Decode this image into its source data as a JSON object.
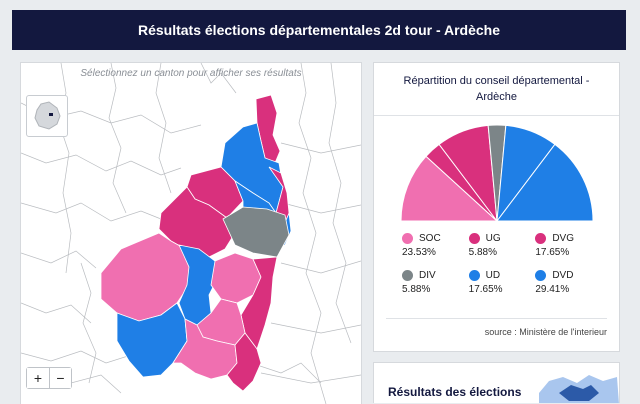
{
  "header": {
    "title": "Résultats élections départementales 2d tour - Ardèche"
  },
  "map": {
    "hint": "Sélectionnez un canton pour afficher ses résultats",
    "zoom_in": "+",
    "zoom_out": "−",
    "inset_icon": "france-outline-icon"
  },
  "colors": {
    "SOC": "#f06fb0",
    "UG": "#d9307d",
    "DVG": "#d9307d",
    "DIV": "#7c8588",
    "UD": "#1f7fe6",
    "DVD": "#1f7fe6",
    "header_bg": "#13183f"
  },
  "council": {
    "title": "Répartition du conseil départemental - Ardèche",
    "source": "source : Ministère de l'interieur"
  },
  "chart_data": {
    "type": "pie",
    "title": "Répartition du conseil départemental - Ardèche",
    "style": "half-donut",
    "slices": [
      {
        "label": "SOC",
        "value": 23.53,
        "display": "23.53%",
        "color": "#f06fb0"
      },
      {
        "label": "UG",
        "value": 5.88,
        "display": "5.88%",
        "color": "#d9307d"
      },
      {
        "label": "DVG",
        "value": 17.65,
        "display": "17.65%",
        "color": "#d9307d"
      },
      {
        "label": "DIV",
        "value": 5.88,
        "display": "5.88%",
        "color": "#7c8588"
      },
      {
        "label": "UD",
        "value": 17.65,
        "display": "17.65%",
        "color": "#1f7fe6"
      },
      {
        "label": "DVD",
        "value": 29.41,
        "display": "29.41%",
        "color": "#1f7fe6"
      }
    ],
    "legend_placement": "below"
  },
  "bottom": {
    "title": "Résultats des élections"
  }
}
